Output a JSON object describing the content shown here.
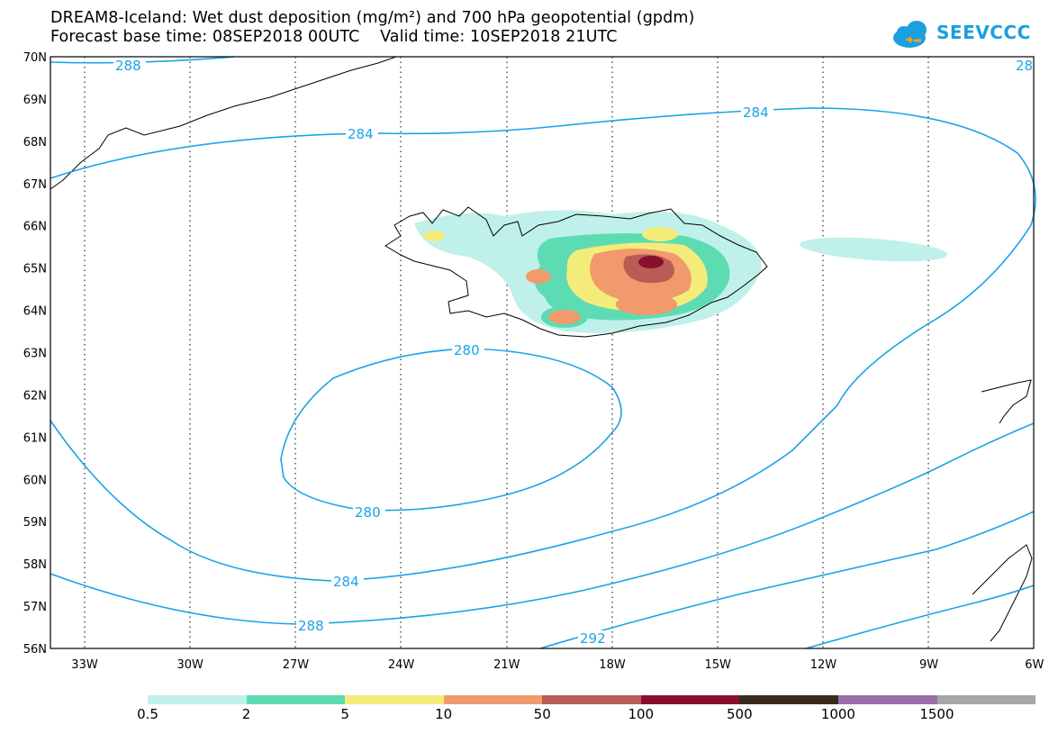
{
  "header": {
    "title_line1": "DREAM8-Iceland: Wet dust deposition (mg/m²) and 700 hPa geopotential (gpdm)",
    "title_line2": "Forecast base time: 08SEP2018 00UTC    Valid time: 10SEP2018 21UTC",
    "logo_text": "SEEVCCC"
  },
  "map": {
    "lat_labels": [
      "70N",
      "69N",
      "68N",
      "67N",
      "66N",
      "65N",
      "64N",
      "63N",
      "62N",
      "61N",
      "60N",
      "59N",
      "58N",
      "57N",
      "56N"
    ],
    "lon_labels": [
      "33W",
      "30W",
      "27W",
      "24W",
      "21W",
      "18W",
      "15W",
      "12W",
      "9W",
      "6W"
    ],
    "contour_labels": [
      "288",
      "284",
      "284",
      "280",
      "280",
      "284",
      "288",
      "292",
      "28"
    ],
    "contour_color": "#1aa3e8"
  },
  "legend": {
    "colors": [
      "#bff1ea",
      "#5ddcb4",
      "#f4ec7a",
      "#f09a6e",
      "#b85d55",
      "#8a0f2e",
      "#3a2a1e",
      "#9a6fa8",
      "#a6a6a6"
    ],
    "labels": [
      "0.5",
      "2",
      "5",
      "10",
      "50",
      "100",
      "500",
      "1000",
      "1500"
    ]
  }
}
